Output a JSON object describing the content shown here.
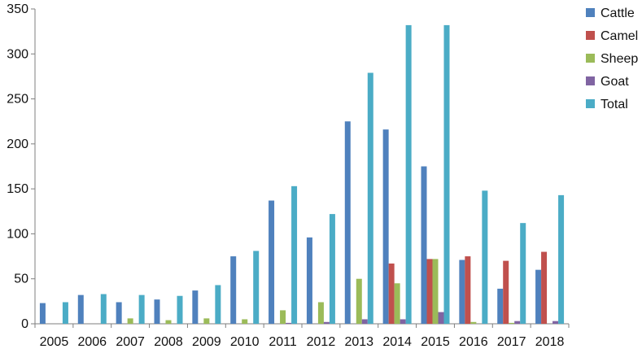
{
  "chart_data": {
    "type": "bar",
    "title": "",
    "xlabel": "",
    "ylabel": "",
    "ylim": [
      0,
      350
    ],
    "yticks": [
      0,
      50,
      100,
      150,
      200,
      250,
      300,
      350
    ],
    "grid": false,
    "legend_position": "right",
    "categories": [
      "2005",
      "2006",
      "2007",
      "2008",
      "2009",
      "2010",
      "2011",
      "2012",
      "2013",
      "2014",
      "2015",
      "2016",
      "2017",
      "2018"
    ],
    "series": [
      {
        "name": "Cattle",
        "color": "#4f81bd",
        "values": [
          23,
          32,
          24,
          27,
          37,
          75,
          137,
          96,
          225,
          216,
          175,
          71,
          39,
          60
        ]
      },
      {
        "name": "Camel",
        "color": "#c0504d",
        "values": [
          0,
          0,
          0,
          0,
          0,
          0,
          0,
          0,
          0,
          67,
          72,
          75,
          70,
          80
        ]
      },
      {
        "name": "Sheep",
        "color": "#9bbb59",
        "values": [
          0,
          0,
          6,
          4,
          6,
          5,
          15,
          24,
          50,
          45,
          72,
          2,
          1,
          0
        ]
      },
      {
        "name": "Goat",
        "color": "#8064a2",
        "values": [
          0,
          0,
          0,
          0,
          0,
          0,
          1,
          2,
          5,
          5,
          13,
          0,
          3,
          3
        ]
      },
      {
        "name": "Total",
        "color": "#4bacc6",
        "values": [
          24,
          33,
          32,
          31,
          43,
          81,
          153,
          122,
          279,
          332,
          332,
          148,
          112,
          143
        ]
      }
    ]
  }
}
